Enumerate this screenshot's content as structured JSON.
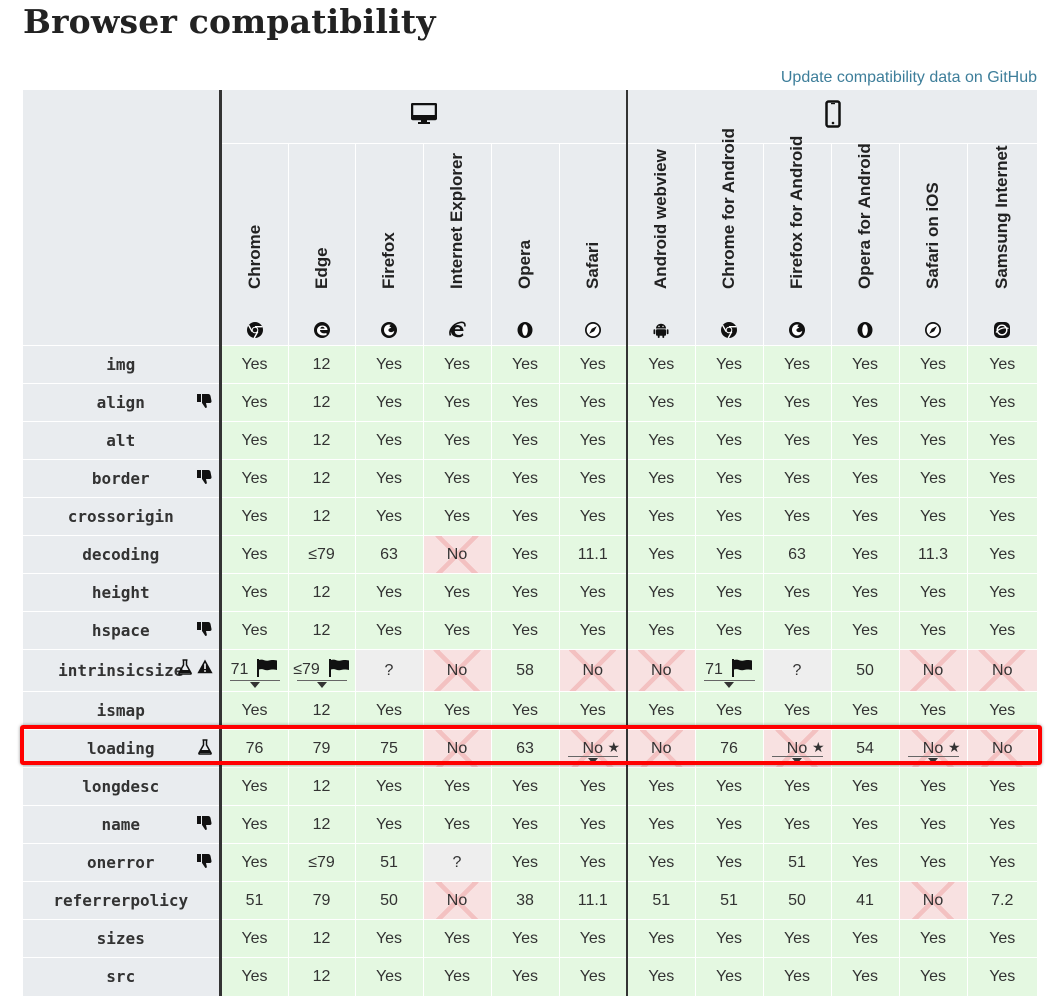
{
  "title": "Browser compatibility",
  "github_link": "Update compatibility data on GitHub",
  "platforms": [
    "desktop-icon",
    "mobile-icon"
  ],
  "browsers": [
    {
      "name": "Chrome",
      "icon": "chrome-icon"
    },
    {
      "name": "Edge",
      "icon": "edge-icon"
    },
    {
      "name": "Firefox",
      "icon": "firefox-icon"
    },
    {
      "name": "Internet Explorer",
      "icon": "ie-icon"
    },
    {
      "name": "Opera",
      "icon": "opera-icon"
    },
    {
      "name": "Safari",
      "icon": "safari-icon"
    },
    {
      "name": "Android webview",
      "icon": "android-icon"
    },
    {
      "name": "Chrome for Android",
      "icon": "chrome-icon"
    },
    {
      "name": "Firefox for Android",
      "icon": "firefox-icon"
    },
    {
      "name": "Opera for Android",
      "icon": "opera-icon"
    },
    {
      "name": "Safari on iOS",
      "icon": "safari-icon"
    },
    {
      "name": "Samsung Internet",
      "icon": "samsung-icon"
    }
  ],
  "rows": [
    {
      "feature": "img",
      "icons": [],
      "cells": [
        "Yes",
        "12",
        "Yes",
        "Yes",
        "Yes",
        "Yes",
        "Yes",
        "Yes",
        "Yes",
        "Yes",
        "Yes",
        "Yes"
      ]
    },
    {
      "feature": "align",
      "icons": [
        "deprecated-icon"
      ],
      "cells": [
        "Yes",
        "12",
        "Yes",
        "Yes",
        "Yes",
        "Yes",
        "Yes",
        "Yes",
        "Yes",
        "Yes",
        "Yes",
        "Yes"
      ]
    },
    {
      "feature": "alt",
      "icons": [],
      "cells": [
        "Yes",
        "12",
        "Yes",
        "Yes",
        "Yes",
        "Yes",
        "Yes",
        "Yes",
        "Yes",
        "Yes",
        "Yes",
        "Yes"
      ]
    },
    {
      "feature": "border",
      "icons": [
        "deprecated-icon"
      ],
      "cells": [
        "Yes",
        "12",
        "Yes",
        "Yes",
        "Yes",
        "Yes",
        "Yes",
        "Yes",
        "Yes",
        "Yes",
        "Yes",
        "Yes"
      ]
    },
    {
      "feature": "crossorigin",
      "icons": [],
      "cells": [
        "Yes",
        "12",
        "Yes",
        "Yes",
        "Yes",
        "Yes",
        "Yes",
        "Yes",
        "Yes",
        "Yes",
        "Yes",
        "Yes"
      ]
    },
    {
      "feature": "decoding",
      "icons": [],
      "cells": [
        "Yes",
        "≤79",
        "63",
        "No",
        "Yes",
        "11.1",
        "Yes",
        "Yes",
        "63",
        "Yes",
        "11.3",
        "Yes"
      ]
    },
    {
      "feature": "height",
      "icons": [],
      "cells": [
        "Yes",
        "12",
        "Yes",
        "Yes",
        "Yes",
        "Yes",
        "Yes",
        "Yes",
        "Yes",
        "Yes",
        "Yes",
        "Yes"
      ]
    },
    {
      "feature": "hspace",
      "icons": [
        "deprecated-icon"
      ],
      "cells": [
        "Yes",
        "12",
        "Yes",
        "Yes",
        "Yes",
        "Yes",
        "Yes",
        "Yes",
        "Yes",
        "Yes",
        "Yes",
        "Yes"
      ]
    },
    {
      "feature": "intrinsicsize",
      "icons": [
        "experimental-icon",
        "warning-icon"
      ],
      "cells": [
        "71",
        "≤79",
        "?",
        "No",
        "58",
        "No",
        "No",
        "71",
        "?",
        "50",
        "No",
        "No"
      ],
      "flags": [
        0,
        1,
        7
      ]
    },
    {
      "feature": "ismap",
      "icons": [],
      "cells": [
        "Yes",
        "12",
        "Yes",
        "Yes",
        "Yes",
        "Yes",
        "Yes",
        "Yes",
        "Yes",
        "Yes",
        "Yes",
        "Yes"
      ]
    },
    {
      "feature": "loading",
      "icons": [
        "experimental-icon"
      ],
      "cells": [
        "76",
        "79",
        "75",
        "No",
        "63",
        "No",
        "No",
        "76",
        "No",
        "54",
        "No",
        "No"
      ],
      "stars": [
        5,
        8,
        10
      ]
    },
    {
      "feature": "longdesc",
      "icons": [],
      "cells": [
        "Yes",
        "12",
        "Yes",
        "Yes",
        "Yes",
        "Yes",
        "Yes",
        "Yes",
        "Yes",
        "Yes",
        "Yes",
        "Yes"
      ]
    },
    {
      "feature": "name",
      "icons": [
        "deprecated-icon"
      ],
      "cells": [
        "Yes",
        "12",
        "Yes",
        "Yes",
        "Yes",
        "Yes",
        "Yes",
        "Yes",
        "Yes",
        "Yes",
        "Yes",
        "Yes"
      ]
    },
    {
      "feature": "onerror",
      "icons": [
        "deprecated-icon"
      ],
      "cells": [
        "Yes",
        "≤79",
        "51",
        "?",
        "Yes",
        "Yes",
        "Yes",
        "Yes",
        "51",
        "Yes",
        "Yes",
        "Yes"
      ]
    },
    {
      "feature": "referrerpolicy",
      "icons": [],
      "cells": [
        "51",
        "79",
        "50",
        "No",
        "38",
        "11.1",
        "51",
        "51",
        "50",
        "41",
        "No",
        "7.2"
      ]
    },
    {
      "feature": "sizes",
      "icons": [],
      "cells": [
        "Yes",
        "12",
        "Yes",
        "Yes",
        "Yes",
        "Yes",
        "Yes",
        "Yes",
        "Yes",
        "Yes",
        "Yes",
        "Yes"
      ]
    },
    {
      "feature": "src",
      "icons": [],
      "cells": [
        "Yes",
        "12",
        "Yes",
        "Yes",
        "Yes",
        "Yes",
        "Yes",
        "Yes",
        "Yes",
        "Yes",
        "Yes",
        "Yes"
      ]
    }
  ],
  "colors": {
    "yes": "#e4f8e1",
    "no": "#f8e1e1",
    "unknown": "#eeeeee",
    "highlight": "#ff0000",
    "link": "#3d7e9a"
  }
}
